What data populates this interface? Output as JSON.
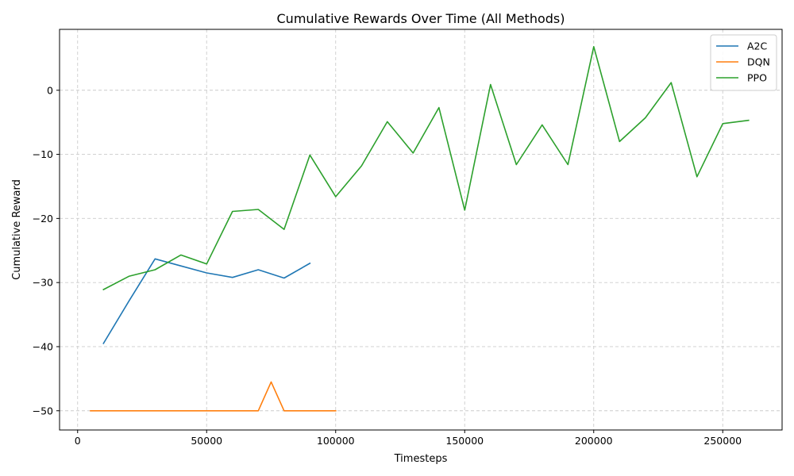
{
  "chart_data": {
    "type": "line",
    "title": "Cumulative Rewards Over Time (All Methods)",
    "xlabel": "Timesteps",
    "ylabel": "Cumulative Reward",
    "xlim": [
      -7000,
      273000
    ],
    "ylim": [
      -53,
      9.5
    ],
    "xticks": [
      0,
      50000,
      100000,
      150000,
      200000,
      250000
    ],
    "yticks": [
      -50,
      -40,
      -30,
      -20,
      -10,
      0
    ],
    "grid": true,
    "legend_position": "upper-right",
    "series": [
      {
        "name": "A2C",
        "color": "#1f77b4",
        "x": [
          10000,
          20000,
          30000,
          40000,
          50000,
          60000,
          70000,
          80000,
          90000
        ],
        "y": [
          -39.5,
          -32.8,
          -26.3,
          -27.4,
          -28.5,
          -29.2,
          -28.0,
          -29.3,
          -27.0
        ]
      },
      {
        "name": "DQN",
        "color": "#ff7f0e",
        "x": [
          5000,
          10000,
          20000,
          30000,
          40000,
          50000,
          60000,
          70000,
          75000,
          80000,
          90000,
          100000
        ],
        "y": [
          -50,
          -50,
          -50,
          -50,
          -50,
          -50,
          -50,
          -50,
          -45.5,
          -50,
          -50,
          -50
        ]
      },
      {
        "name": "PPO",
        "color": "#2ca02c",
        "x": [
          10000,
          20000,
          30000,
          40000,
          50000,
          60000,
          70000,
          80000,
          90000,
          100000,
          110000,
          120000,
          130000,
          140000,
          150000,
          160000,
          170000,
          180000,
          190000,
          200000,
          210000,
          220000,
          230000,
          240000,
          250000,
          260000
        ],
        "y": [
          -31.1,
          -29.0,
          -28.0,
          -25.7,
          -27.1,
          -18.9,
          -18.6,
          -21.7,
          -10.1,
          -16.6,
          -11.8,
          -4.9,
          -9.8,
          -2.7,
          -18.7,
          0.9,
          -11.6,
          -5.4,
          -11.6,
          6.8,
          -8.0,
          -4.3,
          1.2,
          -13.5,
          -5.2,
          -4.7
        ]
      }
    ]
  }
}
